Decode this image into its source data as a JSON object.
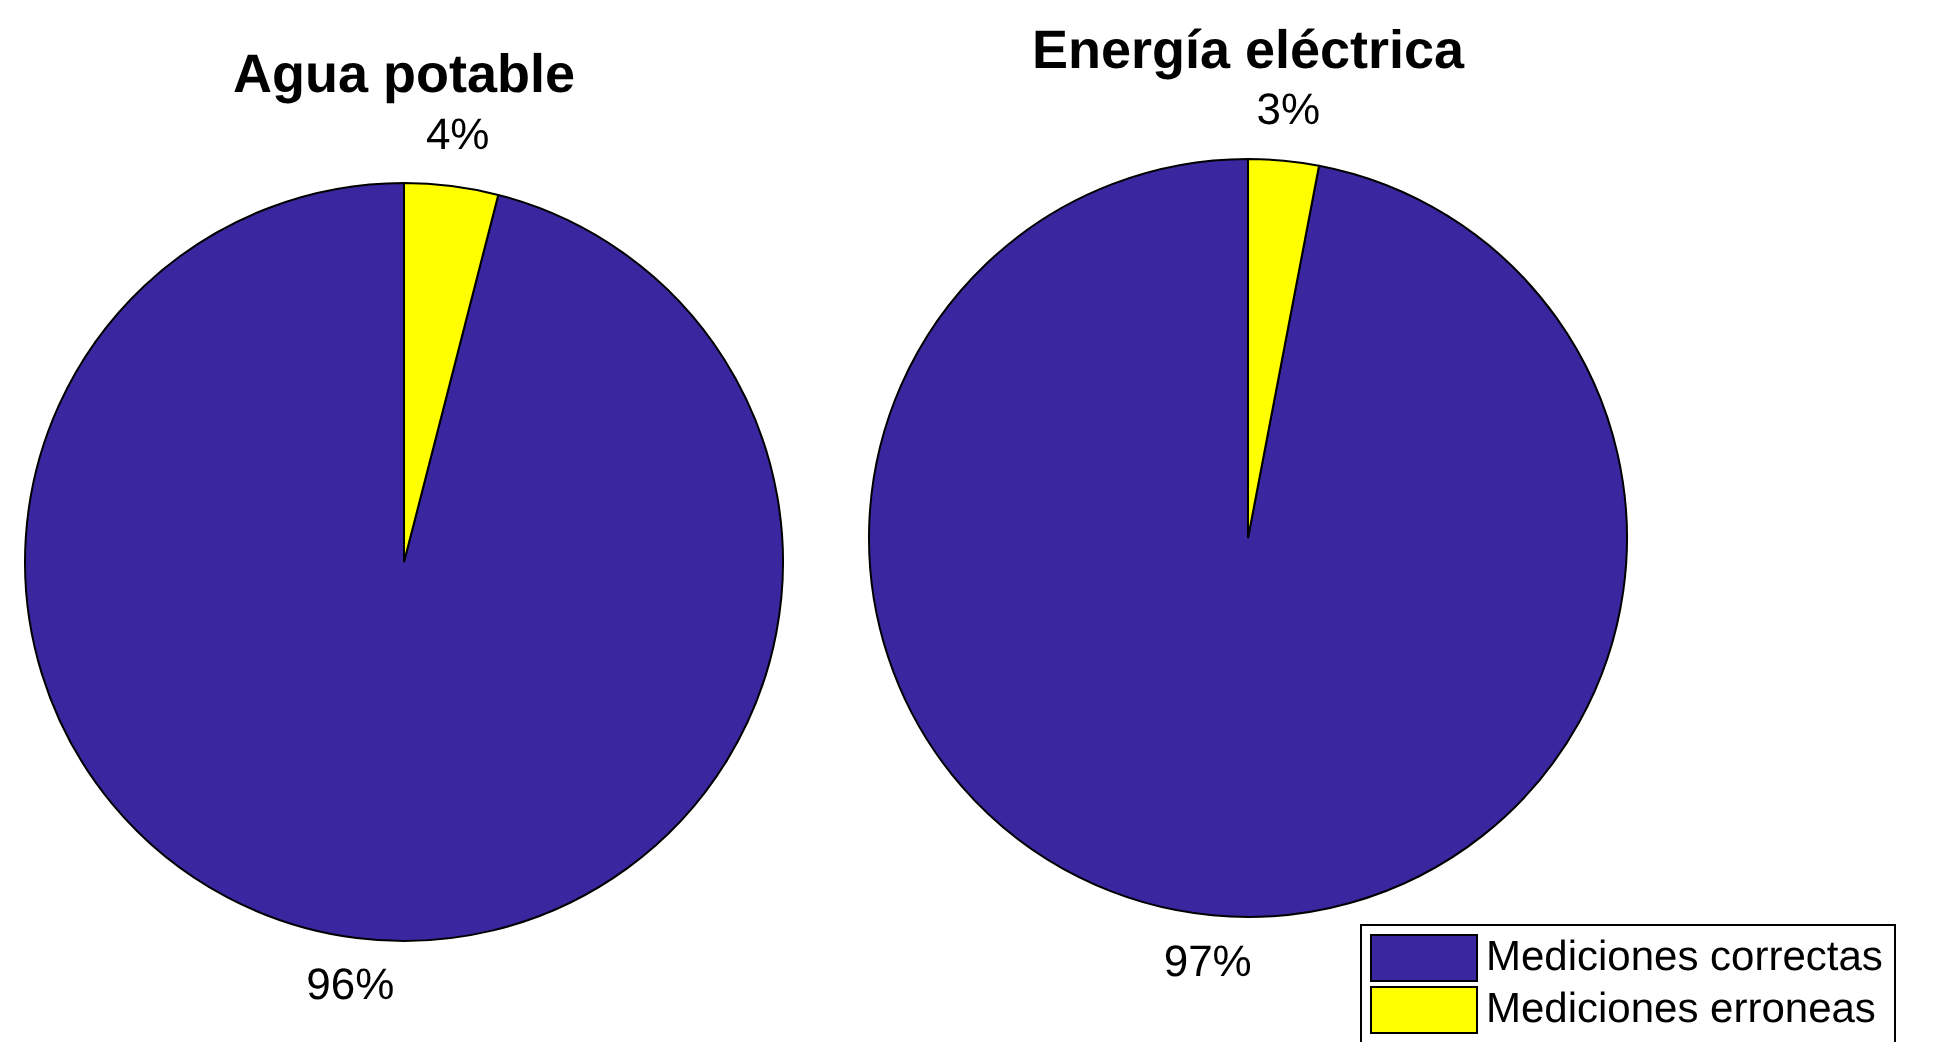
{
  "chart_data": [
    {
      "type": "pie",
      "title": "Agua potable",
      "categories": [
        null,
        null
      ],
      "values": [
        96,
        4
      ],
      "colors": [
        "#3a27a0",
        "#ffff00"
      ],
      "value_labels": [
        "96%",
        "4%"
      ],
      "legend": false
    },
    {
      "type": "pie",
      "title": "Energía eléctrica",
      "categories": [
        "Mediciones correctas",
        "Mediciones erroneas"
      ],
      "values": [
        97,
        3
      ],
      "colors": [
        "#3a27a0",
        "#ffff00"
      ],
      "value_labels": [
        "97%",
        "3%"
      ],
      "legend": "bottom right"
    }
  ]
}
